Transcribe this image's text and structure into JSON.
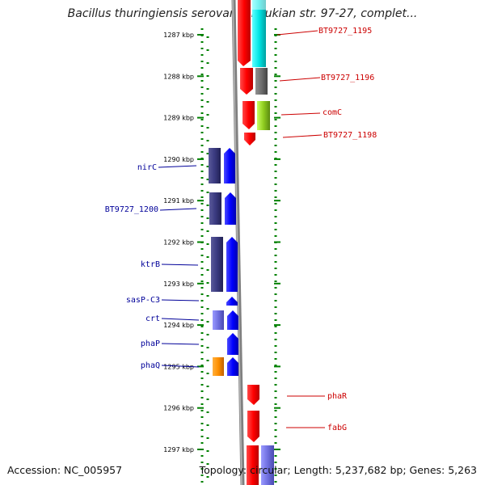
{
  "title": "Bacillus thuringiensis serovar konkukian str. 97-27, complet...",
  "footer": {
    "accession": "Accession: NC_005957",
    "topology": "Topology: circular; Length: 5,237,682 bp; Genes: 5,263"
  },
  "colors": {
    "forward_gene": "#ff0000",
    "reverse_gene": "#0000ff",
    "forward_label": "#cc0000",
    "reverse_label": "#000099",
    "ruler_dots": "#008000",
    "backbone": "#808080"
  },
  "ruler": {
    "ticks": [
      "1287 kbp",
      "1288 kbp",
      "1289 kbp",
      "1290 kbp",
      "1291 kbp",
      "1292 kbp",
      "1293 kbp",
      "1294 kbp",
      "1295 kbp",
      "1296 kbp",
      "1297 kbp"
    ]
  },
  "genes": {
    "forward": [
      {
        "label": "BT9727_1195",
        "start_kbp": 1286.4,
        "end_kbp": 1287.8
      },
      {
        "label": "BT9727_1196",
        "start_kbp": 1287.8,
        "end_kbp": 1288.6
      },
      {
        "label": "comC",
        "start_kbp": 1288.6,
        "end_kbp": 1289.3
      },
      {
        "label": "BT9727_1198",
        "start_kbp": 1289.3,
        "end_kbp": 1289.65
      },
      {
        "label": "phaR",
        "start_kbp": 1295.45,
        "end_kbp": 1295.95
      },
      {
        "label": "fabG",
        "start_kbp": 1296.05,
        "end_kbp": 1296.8
      },
      {
        "label": "",
        "start_kbp": 1296.9,
        "end_kbp": 1297.6
      }
    ],
    "reverse": [
      {
        "label": "nirC",
        "start_kbp": 1289.75,
        "end_kbp": 1290.6
      },
      {
        "label": "BT9727_1200",
        "start_kbp": 1290.75,
        "end_kbp": 1291.55
      },
      {
        "label": "ktrB",
        "start_kbp": 1291.75,
        "end_kbp": 1293.1
      },
      {
        "label": "sasP-C3",
        "start_kbp": 1293.3,
        "end_kbp": 1293.5
      },
      {
        "label": "crt",
        "start_kbp": 1293.65,
        "end_kbp": 1294.1
      },
      {
        "label": "phaP",
        "start_kbp": 1294.15,
        "end_kbp": 1294.7
      },
      {
        "label": "phaQ",
        "start_kbp": 1294.8,
        "end_kbp": 1295.25
      }
    ]
  }
}
